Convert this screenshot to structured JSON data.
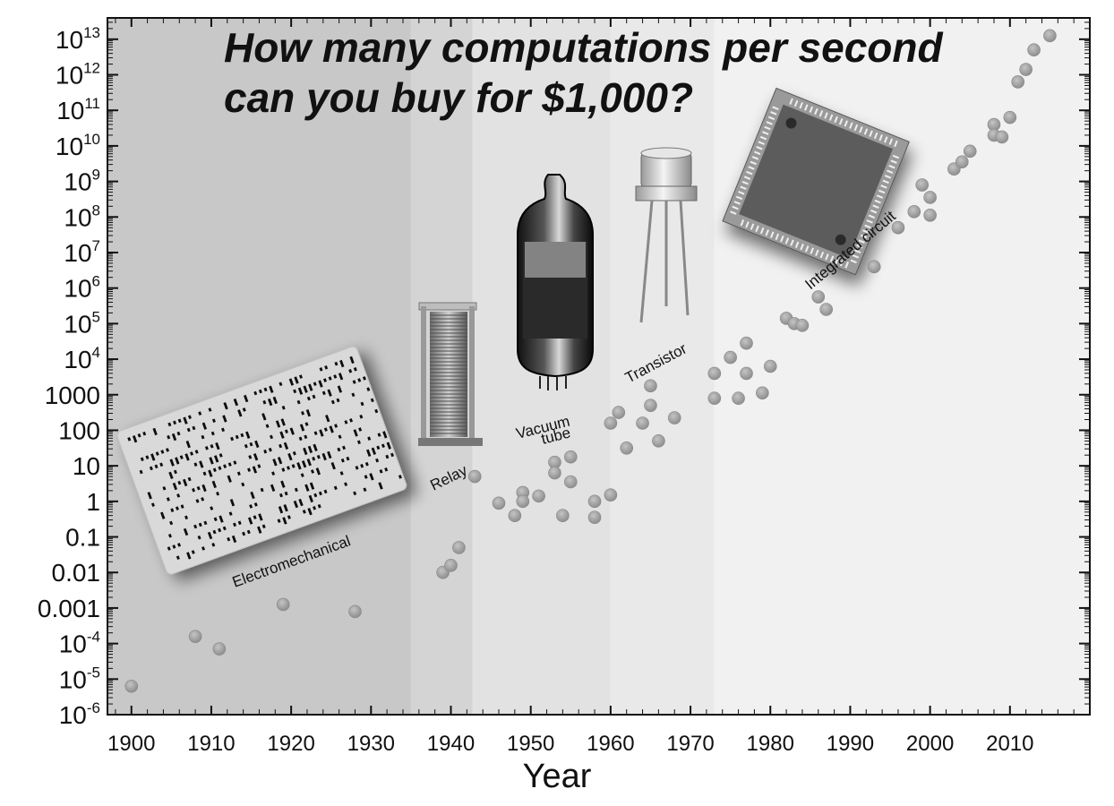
{
  "chart_data": {
    "type": "scatter",
    "title_lines": [
      "How many computations per second",
      "can you buy for $1,000?"
    ],
    "xlabel": "Year",
    "ylabel": "",
    "xlim": [
      1897,
      2020
    ],
    "ylim_log10": [
      -6,
      13.6
    ],
    "x_ticks": [
      "1900",
      "1910",
      "1920",
      "1930",
      "1940",
      "1950",
      "1960",
      "1970",
      "1980",
      "1990",
      "2000",
      "2010"
    ],
    "y_ticks": [
      {
        "exp": 13,
        "base": "10",
        "sup": "13"
      },
      {
        "exp": 12,
        "base": "10",
        "sup": "12"
      },
      {
        "exp": 11,
        "base": "10",
        "sup": "11"
      },
      {
        "exp": 10,
        "base": "10",
        "sup": "10"
      },
      {
        "exp": 9,
        "base": "10",
        "sup": "9"
      },
      {
        "exp": 8,
        "base": "10",
        "sup": "8"
      },
      {
        "exp": 7,
        "base": "10",
        "sup": "7"
      },
      {
        "exp": 6,
        "base": "10",
        "sup": "6"
      },
      {
        "exp": 5,
        "base": "10",
        "sup": "5"
      },
      {
        "exp": 4,
        "base": "10",
        "sup": "4"
      },
      {
        "exp": 3,
        "base": "1000",
        "sup": ""
      },
      {
        "exp": 2,
        "base": "100",
        "sup": ""
      },
      {
        "exp": 1,
        "base": "10",
        "sup": ""
      },
      {
        "exp": 0,
        "base": "1",
        "sup": ""
      },
      {
        "exp": -1,
        "base": "0.1",
        "sup": ""
      },
      {
        "exp": -2,
        "base": "0.01",
        "sup": ""
      },
      {
        "exp": -3,
        "base": "0.001",
        "sup": ""
      },
      {
        "exp": -4,
        "base": "10",
        "sup": "-4"
      },
      {
        "exp": -5,
        "base": "10",
        "sup": "-5"
      },
      {
        "exp": -6,
        "base": "10",
        "sup": "-6"
      }
    ],
    "eras": [
      {
        "label": "Electromechanical",
        "from": 1897,
        "to": 1935,
        "color": "#c8c8c8"
      },
      {
        "label": "Relay",
        "from": 1935,
        "to": 1942.7,
        "color": "#d4d4d4"
      },
      {
        "label": "Vacuum tube",
        "from": 1942.7,
        "to": 1960,
        "color": "#e2e2e2"
      },
      {
        "label": "Transistor",
        "from": 1960,
        "to": 1973,
        "color": "#e9e9e9"
      },
      {
        "label": "Integrated circuit",
        "from": 1973,
        "to": 2020,
        "color": "#f1f1f1"
      }
    ],
    "era_labels": [
      "Electromechanical",
      "Relay",
      "Vacuum",
      "tube",
      "Transistor",
      "Integrated circuit"
    ],
    "points": [
      [
        1900,
        -5.2
      ],
      [
        1908,
        -3.8
      ],
      [
        1911,
        -4.15
      ],
      [
        1919,
        -2.9
      ],
      [
        1928,
        -3.1
      ],
      [
        1939,
        -2.0
      ],
      [
        1940,
        -1.8
      ],
      [
        1941,
        -1.3
      ],
      [
        1943,
        0.7
      ],
      [
        1946,
        -0.05
      ],
      [
        1948,
        -0.4
      ],
      [
        1949,
        0.25
      ],
      [
        1949,
        0.0
      ],
      [
        1951,
        0.15
      ],
      [
        1953,
        1.1
      ],
      [
        1953,
        0.8
      ],
      [
        1954,
        -0.4
      ],
      [
        1955,
        1.25
      ],
      [
        1955,
        0.55
      ],
      [
        1958,
        0.0
      ],
      [
        1958,
        -0.45
      ],
      [
        1960,
        2.2
      ],
      [
        1960,
        0.18
      ],
      [
        1961,
        2.5
      ],
      [
        1962,
        1.5
      ],
      [
        1964,
        2.2
      ],
      [
        1965,
        3.25
      ],
      [
        1965,
        2.7
      ],
      [
        1966,
        1.7
      ],
      [
        1968,
        2.35
      ],
      [
        1973,
        3.6
      ],
      [
        1973,
        2.9
      ],
      [
        1975,
        4.05
      ],
      [
        1976,
        2.9
      ],
      [
        1977,
        4.45
      ],
      [
        1977,
        3.6
      ],
      [
        1979,
        3.05
      ],
      [
        1980,
        3.8
      ],
      [
        1982,
        5.15
      ],
      [
        1983,
        5.0
      ],
      [
        1984,
        4.95
      ],
      [
        1986,
        5.75
      ],
      [
        1987,
        5.4
      ],
      [
        1993,
        6.6
      ],
      [
        1996,
        7.7
      ],
      [
        1998,
        8.15
      ],
      [
        1999,
        8.9
      ],
      [
        2000,
        8.55
      ],
      [
        2000,
        8.05
      ],
      [
        2003,
        9.35
      ],
      [
        2004,
        9.55
      ],
      [
        2005,
        9.85
      ],
      [
        2008,
        10.6
      ],
      [
        2008,
        10.3
      ],
      [
        2009,
        10.25
      ],
      [
        2010,
        10.8
      ],
      [
        2011,
        11.8
      ],
      [
        2012,
        12.15
      ],
      [
        2013,
        12.7
      ],
      [
        2015,
        13.1
      ]
    ]
  }
}
